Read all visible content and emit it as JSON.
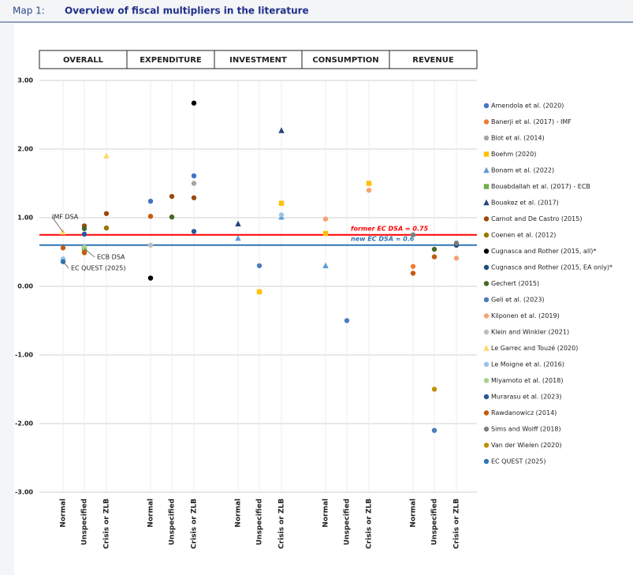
{
  "chart_data": {
    "type": "scatter",
    "label": "Map 1:",
    "title": "Overview of fiscal multipliers in the literature",
    "panels": [
      "OVERALL",
      "EXPENDITURE",
      "INVESTMENT",
      "CONSUMPTION",
      "REVENUE"
    ],
    "categories": [
      "Normal",
      "Unspecified",
      "Crisis or ZLB",
      "Normal",
      "Unspecified",
      "Crisis or ZLB",
      "Normal",
      "Unspecified",
      "Crisis or ZLB",
      "Normal",
      "Unspecified",
      "Crisis or ZLB",
      "Normal",
      "Unspecified",
      "Crisis or ZLB"
    ],
    "ylim": [
      -3,
      3
    ],
    "yticks": [
      {
        "value": 3,
        "label": "3.00"
      },
      {
        "value": 2,
        "label": "2.00"
      },
      {
        "value": 1,
        "label": "1.00"
      },
      {
        "value": 0,
        "label": "0.00"
      },
      {
        "value": -1,
        "label": "-1.00"
      },
      {
        "value": -2,
        "label": "-2.00"
      },
      {
        "value": -3,
        "label": "-3.00"
      }
    ],
    "grid": true,
    "legend": "right",
    "hlines": [
      {
        "value": 0.75,
        "label": "former EC DSA = 0.75",
        "color": "#ff0000"
      },
      {
        "value": 0.6,
        "label": "new EC DSA = 0.6",
        "color": "#2e75b6"
      }
    ],
    "annotations": [
      "IMF DSA",
      "ECB DSA",
      "EC QUEST (2025)"
    ],
    "series": [
      {
        "name": "Amendola et al. (2020)",
        "color": "#4472c4",
        "marker": "circle",
        "values": [
          null,
          null,
          null,
          1.24,
          null,
          1.61,
          null,
          null,
          null,
          null,
          null,
          null,
          null,
          null,
          null
        ]
      },
      {
        "name": "Banerji et al. (2017) - IMF",
        "color": "#ed7d31",
        "marker": "circle",
        "values": [
          null,
          0.51,
          null,
          null,
          null,
          null,
          null,
          null,
          null,
          null,
          null,
          null,
          0.29,
          null,
          null
        ]
      },
      {
        "name": "Blot et al. (2014)",
        "color": "#a5a5a5",
        "marker": "circle",
        "values": [
          null,
          null,
          null,
          null,
          null,
          1.5,
          null,
          null,
          null,
          null,
          null,
          null,
          null,
          null,
          null
        ]
      },
      {
        "name": "Boehm (2020)",
        "color": "#ffc000",
        "marker": "square",
        "values": [
          null,
          null,
          null,
          null,
          null,
          null,
          null,
          -0.08,
          1.21,
          0.77,
          null,
          1.5,
          null,
          null,
          null
        ]
      },
      {
        "name": "Bonam et al. (2022)",
        "color": "#5b9bd5",
        "marker": "triangle",
        "values": [
          null,
          null,
          null,
          null,
          null,
          null,
          0.7,
          null,
          1.01,
          0.3,
          null,
          null,
          null,
          null,
          null
        ]
      },
      {
        "name": "Bouabdallah et al. (2017) - ECB",
        "color": "#70ad47",
        "marker": "square",
        "values": [
          null,
          0.55,
          null,
          null,
          null,
          null,
          null,
          null,
          null,
          null,
          null,
          null,
          null,
          null,
          null
        ]
      },
      {
        "name": "Bouakez et al. (2017)",
        "color": "#264478",
        "marker": "triangle",
        "values": [
          null,
          null,
          null,
          null,
          null,
          null,
          0.91,
          null,
          2.27,
          null,
          null,
          null,
          null,
          null,
          null
        ]
      },
      {
        "name": "Carnot and De Castro (2015)",
        "color": "#9e480e",
        "marker": "circle",
        "values": [
          null,
          0.88,
          1.06,
          null,
          1.31,
          1.29,
          null,
          null,
          null,
          null,
          null,
          null,
          null,
          null,
          null
        ]
      },
      {
        "name": "Coenen et al. (2012)",
        "color": "#997300",
        "marker": "circle",
        "values": [
          null,
          null,
          0.85,
          null,
          null,
          null,
          null,
          null,
          null,
          null,
          null,
          null,
          null,
          null,
          null
        ]
      },
      {
        "name": "Cugnasca and Rother (2015, all)*",
        "color": "#000000",
        "marker": "circle",
        "values": [
          null,
          null,
          null,
          0.12,
          null,
          2.67,
          null,
          null,
          null,
          null,
          null,
          null,
          null,
          null,
          null
        ]
      },
      {
        "name": "Cugnasca and Rother (2015, EA only)*",
        "color": "#1f4e79",
        "marker": "circle",
        "values": [
          null,
          null,
          null,
          null,
          null,
          null,
          null,
          null,
          null,
          null,
          null,
          null,
          null,
          null,
          0.6
        ]
      },
      {
        "name": "Gechert (2015)",
        "color": "#43682b",
        "marker": "circle",
        "values": [
          null,
          0.84,
          null,
          null,
          1.01,
          null,
          null,
          null,
          null,
          null,
          null,
          null,
          null,
          0.54,
          null
        ]
      },
      {
        "name": "Geli et al. (2023)",
        "color": "#4a7ebb",
        "marker": "circle",
        "values": [
          null,
          null,
          null,
          null,
          null,
          null,
          null,
          0.3,
          null,
          null,
          -0.5,
          null,
          null,
          -2.1,
          null
        ]
      },
      {
        "name": "Kilponen et al. (2019)",
        "color": "#f4a470",
        "marker": "circle",
        "values": [
          null,
          null,
          null,
          null,
          null,
          null,
          null,
          null,
          null,
          0.98,
          null,
          1.4,
          null,
          null,
          0.41
        ]
      },
      {
        "name": "Klein and Winkler (2021)",
        "color": "#bfbfbf",
        "marker": "circle",
        "values": [
          null,
          null,
          null,
          0.6,
          null,
          null,
          null,
          null,
          null,
          null,
          null,
          null,
          null,
          null,
          null
        ]
      },
      {
        "name": "Le Garrec and Touzé (2020)",
        "color": "#ffd966",
        "marker": "triangle",
        "values": [
          0.79,
          null,
          1.9,
          null,
          null,
          null,
          null,
          null,
          null,
          null,
          null,
          null,
          null,
          null,
          null
        ]
      },
      {
        "name": "Le Moigne et al. (2016)",
        "color": "#9dc3e6",
        "marker": "circle",
        "values": [
          0.4,
          null,
          null,
          null,
          null,
          null,
          null,
          null,
          1.04,
          null,
          null,
          null,
          null,
          null,
          null
        ]
      },
      {
        "name": "Miyamoto et al. (2018)",
        "color": "#a9d18e",
        "marker": "circle",
        "values": [
          null,
          0.57,
          null,
          null,
          null,
          null,
          null,
          null,
          null,
          null,
          null,
          null,
          null,
          null,
          null
        ]
      },
      {
        "name": "Murarasu et al. (2023)",
        "color": "#2f5597",
        "marker": "circle",
        "values": [
          null,
          0.76,
          null,
          null,
          null,
          0.8,
          null,
          null,
          null,
          null,
          null,
          null,
          null,
          null,
          null
        ]
      },
      {
        "name": "Rawdanowicz (2014)",
        "color": "#c55a11",
        "marker": "circle",
        "values": [
          0.56,
          0.49,
          null,
          1.02,
          null,
          null,
          null,
          null,
          null,
          null,
          null,
          null,
          0.19,
          0.43,
          null
        ]
      },
      {
        "name": "Sims and Wolff (2018)",
        "color": "#7f7f7f",
        "marker": "circle",
        "values": [
          null,
          null,
          null,
          null,
          null,
          null,
          null,
          null,
          null,
          null,
          null,
          null,
          0.75,
          null,
          0.63
        ]
      },
      {
        "name": "Van der Wielen (2020)",
        "color": "#bf9000",
        "marker": "circle",
        "values": [
          null,
          null,
          null,
          null,
          null,
          null,
          null,
          null,
          null,
          null,
          null,
          null,
          null,
          -1.5,
          null
        ]
      },
      {
        "name": "EC QUEST (2025)",
        "color": "#2e75b6",
        "marker": "circle",
        "values": [
          0.36,
          null,
          null,
          null,
          null,
          null,
          null,
          null,
          null,
          null,
          null,
          null,
          null,
          null,
          null
        ]
      }
    ]
  }
}
